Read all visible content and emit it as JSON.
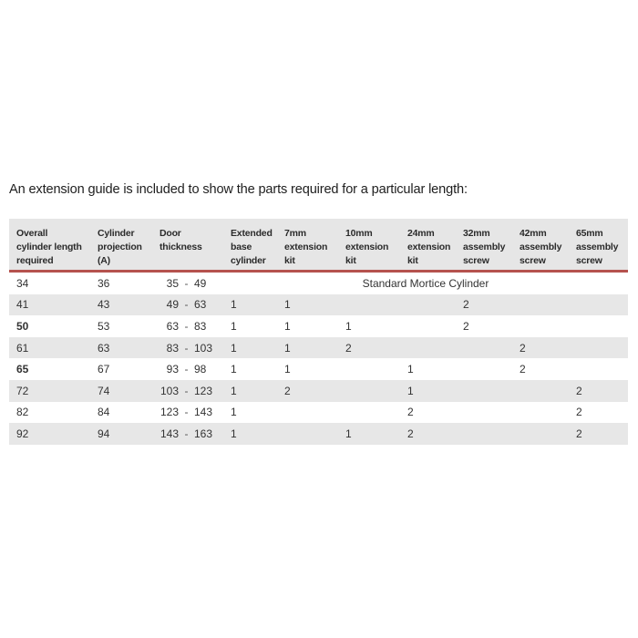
{
  "page": {
    "intro": "An extension guide is included to show the parts required for a particular length:"
  },
  "colors": {
    "accent_line": "#b5524e",
    "header_bg": "#e6e6e6",
    "row_alt_bg": "#e7e7e7",
    "text": "#333333"
  },
  "table": {
    "dash": "-",
    "headers": [
      [
        "Overall",
        "cylinder length",
        "required"
      ],
      [
        "Cylinder",
        "projection",
        "(A)"
      ],
      [
        "Door",
        "thickness"
      ],
      [
        "Extended",
        "base",
        "cylinder"
      ],
      [
        "7mm",
        "extension",
        "kit"
      ],
      [
        "10mm",
        "extension",
        "kit"
      ],
      [
        "24mm",
        "extension",
        "kit"
      ],
      [
        "32mm",
        "assembly",
        "screw"
      ],
      [
        "42mm",
        "assembly",
        "screw"
      ],
      [
        "65mm",
        "assembly",
        "screw"
      ]
    ],
    "rows": [
      {
        "overall": "34",
        "projection": "36",
        "door_min": "35",
        "door_max": "49",
        "span_text": "Standard Mortice Cylinder"
      },
      {
        "overall": "41",
        "projection": "43",
        "door_min": "49",
        "door_max": "63",
        "cells": [
          "1",
          "1",
          "",
          "",
          "2",
          "",
          ""
        ]
      },
      {
        "overall": "50",
        "projection": "53",
        "door_min": "63",
        "door_max": "83",
        "cells": [
          "1",
          "1",
          "1",
          "",
          "2",
          "",
          ""
        ]
      },
      {
        "overall": "61",
        "projection": "63",
        "door_min": "83",
        "door_max": "103",
        "cells": [
          "1",
          "1",
          "2",
          "",
          "",
          "2",
          ""
        ]
      },
      {
        "overall": "65",
        "projection": "67",
        "door_min": "93",
        "door_max": "98",
        "cells": [
          "1",
          "1",
          "",
          "1",
          "",
          "2",
          ""
        ]
      },
      {
        "overall": "72",
        "projection": "74",
        "door_min": "103",
        "door_max": "123",
        "cells": [
          "1",
          "2",
          "",
          "1",
          "",
          "",
          "2"
        ]
      },
      {
        "overall": "82",
        "projection": "84",
        "door_min": "123",
        "door_max": "143",
        "cells": [
          "1",
          "",
          "",
          "2",
          "",
          "",
          "2"
        ]
      },
      {
        "overall": "92",
        "projection": "94",
        "door_min": "143",
        "door_max": "163",
        "cells": [
          "1",
          "",
          "1",
          "2",
          "",
          "",
          "2"
        ]
      }
    ]
  }
}
